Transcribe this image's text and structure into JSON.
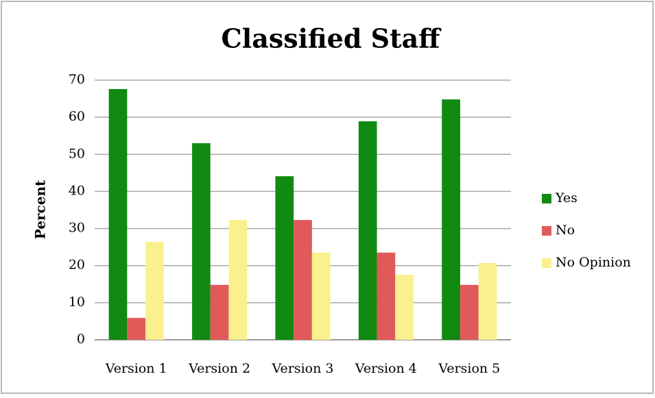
{
  "chart_data": {
    "type": "bar",
    "title": "Classified Staff",
    "y_label": "Percent",
    "categories": [
      "Version 1",
      "Version 2",
      "Version 3",
      "Version 4",
      "Version 5"
    ],
    "series": [
      {
        "name": "Yes",
        "color": "#108a10",
        "values": [
          67.6,
          53.0,
          44.1,
          58.9,
          64.8
        ]
      },
      {
        "name": "No",
        "color": "#e05a5a",
        "values": [
          5.9,
          14.8,
          32.3,
          23.5,
          14.8
        ]
      },
      {
        "name": "No Opinion",
        "color": "#faf08e",
        "values": [
          26.4,
          32.3,
          23.5,
          17.5,
          20.7
        ]
      }
    ],
    "ylim": [
      0,
      70
    ],
    "yticks": [
      0,
      10,
      20,
      30,
      40,
      50,
      60,
      70
    ],
    "grid": true,
    "legend": "right"
  }
}
